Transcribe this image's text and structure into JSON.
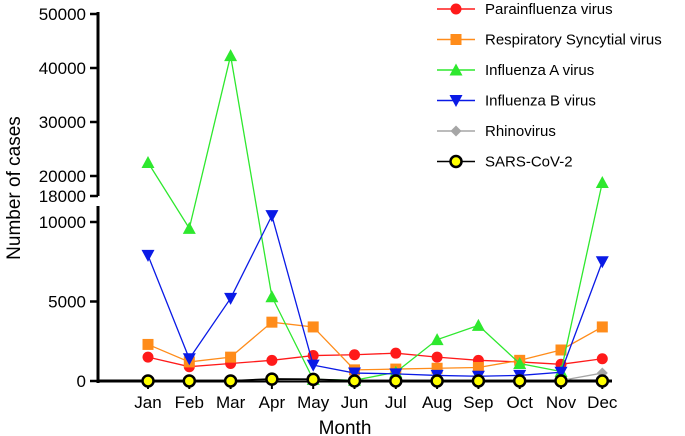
{
  "chart_data": {
    "type": "line",
    "categories": [
      "Jan",
      "Feb",
      "Mar",
      "Apr",
      "May",
      "Jun",
      "Jul",
      "Aug",
      "Sep",
      "Oct",
      "Nov",
      "Dec"
    ],
    "xlabel": "Month",
    "ylabel": "Number of cases",
    "y_axis": {
      "segments": [
        {
          "range": [
            0,
            10500
          ],
          "ticks": [
            0,
            5000,
            10000
          ],
          "tick_labels": [
            "0",
            "5000",
            "10000"
          ]
        },
        {
          "range": [
            18000,
            50000
          ],
          "ticks": [
            18000,
            20000,
            30000,
            40000,
            50000
          ],
          "tick_labels": [
            "18000",
            "20000",
            "30000",
            "40000",
            "50000"
          ]
        }
      ],
      "broken": true
    },
    "grid": false,
    "legend_placement": "top-right",
    "series": [
      {
        "name": "Parainfluenza virus",
        "color": "#ff1a1a",
        "marker": "circle",
        "values": [
          1500,
          900,
          1100,
          1300,
          1600,
          1650,
          1750,
          1500,
          1300,
          1200,
          1050,
          1400
        ]
      },
      {
        "name": "Respiratory Syncytial virus",
        "color": "#ff8c1a",
        "marker": "square",
        "values": [
          2300,
          1200,
          1500,
          3700,
          3400,
          700,
          750,
          800,
          850,
          1300,
          1950,
          3400
        ]
      },
      {
        "name": "Influenza A virus",
        "color": "#2ee82e",
        "marker": "triangle-up",
        "values": [
          22500,
          9600,
          42300,
          5300,
          100,
          50,
          550,
          2600,
          3500,
          1100,
          600,
          18800
        ]
      },
      {
        "name": "Influenza B virus",
        "color": "#0a1ae6",
        "marker": "triangle-down",
        "values": [
          7900,
          1400,
          5200,
          10400,
          1000,
          500,
          450,
          350,
          300,
          350,
          550,
          7500
        ]
      },
      {
        "name": "Rhinovirus",
        "color": "#a6a6a6",
        "marker": "diamond",
        "values": [
          30,
          30,
          30,
          60,
          50,
          30,
          30,
          30,
          30,
          30,
          30,
          500
        ]
      },
      {
        "name": "SARS-CoV-2",
        "color": "#ffff00",
        "marker": "circle-outlined",
        "values": [
          0,
          0,
          0,
          120,
          100,
          0,
          0,
          0,
          0,
          0,
          0,
          0
        ]
      }
    ]
  }
}
